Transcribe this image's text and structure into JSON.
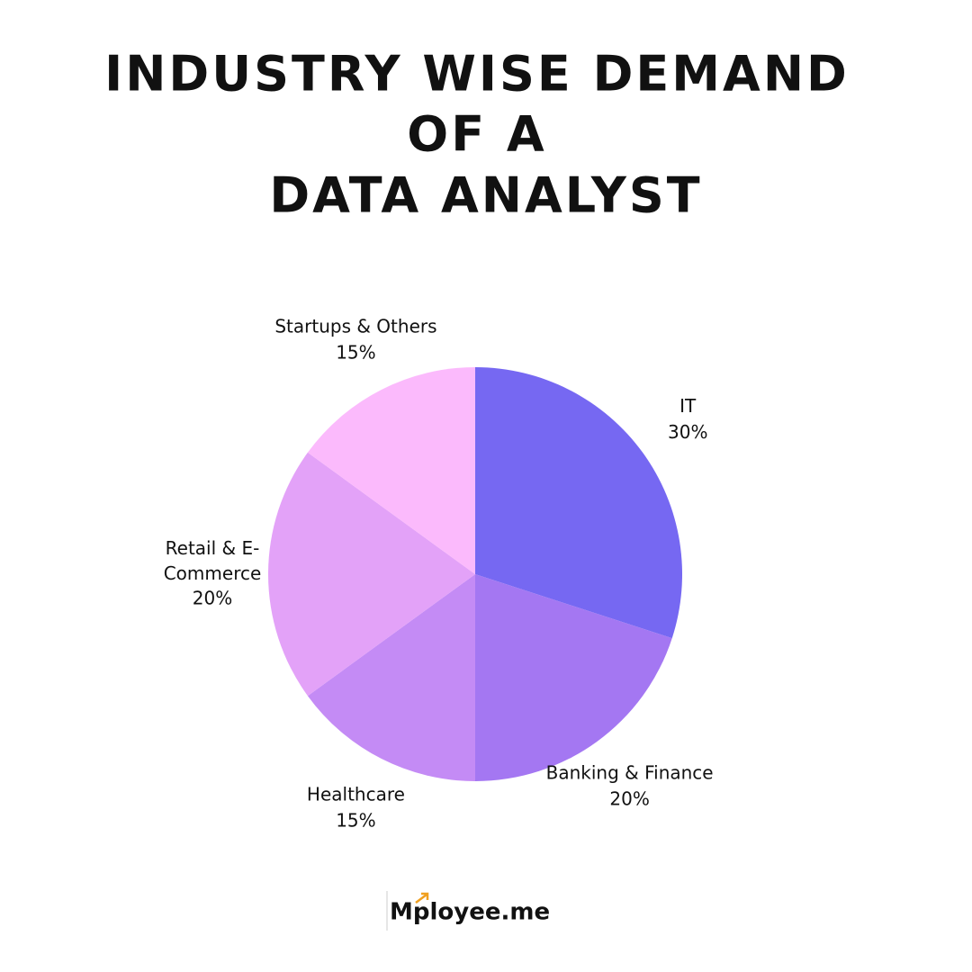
{
  "chart_data": {
    "type": "pie",
    "title": [
      "INDUSTRY WISE DEMAND",
      "OF A",
      "DATA ANALYST"
    ],
    "categories": [
      "IT",
      "Banking & Finance",
      "Healthcare",
      "Retail & E-Commerce",
      "Startups & Others"
    ],
    "values": [
      30,
      20,
      15,
      20,
      15
    ],
    "value_labels": [
      "30%",
      "20%",
      "15%",
      "20%",
      "15%"
    ],
    "colors": [
      "#7668f2",
      "#a477f2",
      "#c48bf5",
      "#e3a2f8",
      "#fbbafc"
    ]
  },
  "brand": "Mployee.me"
}
